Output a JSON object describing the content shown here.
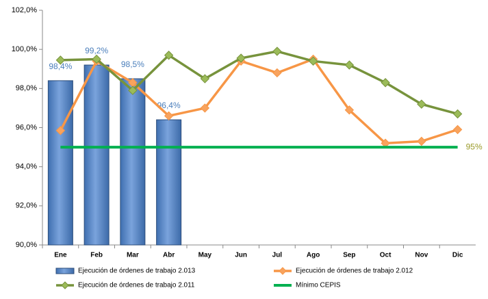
{
  "chart_data": {
    "type": "bar-line",
    "categories": [
      "Ene",
      "Feb",
      "Mar",
      "Abr",
      "May",
      "Jun",
      "Jul",
      "Ago",
      "Sep",
      "Oct",
      "Nov",
      "Dic"
    ],
    "ylim": [
      90,
      102
    ],
    "yticks": [
      {
        "value": 90,
        "label": "90,0%"
      },
      {
        "value": 92,
        "label": "92,0%"
      },
      {
        "value": 94,
        "label": "94,0%"
      },
      {
        "value": 96,
        "label": "96,0%"
      },
      {
        "value": 98,
        "label": "98,0%"
      },
      {
        "value": 100,
        "label": "100,0%"
      },
      {
        "value": 102,
        "label": "102,0%"
      }
    ],
    "series": [
      {
        "name": "Ejecución de órdenes de trabajo 2.013",
        "type": "bar",
        "color": "#4f81bd",
        "values": [
          98.4,
          99.2,
          98.5,
          96.4,
          null,
          null,
          null,
          null,
          null,
          null,
          null,
          null
        ],
        "value_labels": [
          "98,4%",
          "99,2%",
          "98,5%",
          "96,4%",
          null,
          null,
          null,
          null,
          null,
          null,
          null,
          null
        ]
      },
      {
        "name": "Ejecución de órdenes de trabajo 2.012",
        "type": "line",
        "color": "#f79646",
        "marker_color": "#f8a35e",
        "values": [
          95.85,
          99.4,
          98.3,
          96.6,
          97.0,
          99.4,
          98.8,
          99.5,
          96.9,
          95.2,
          95.3,
          95.9
        ]
      },
      {
        "name": "Ejecución de órdenes de trabajo 2.011",
        "type": "line",
        "color": "#77933c",
        "marker_color": "#9bbb59",
        "values": [
          99.45,
          99.5,
          97.9,
          99.7,
          98.5,
          99.55,
          99.9,
          99.4,
          99.2,
          98.3,
          97.2,
          96.7
        ]
      },
      {
        "name": "Mínimo CEPIS",
        "type": "threshold",
        "color": "#00b050",
        "values": [
          95,
          95,
          95,
          95,
          95,
          95,
          95,
          95,
          95,
          95,
          95,
          95
        ],
        "value_labels": [
          null,
          null,
          null,
          null,
          null,
          null,
          null,
          null,
          null,
          null,
          null,
          "95%"
        ]
      }
    ]
  }
}
